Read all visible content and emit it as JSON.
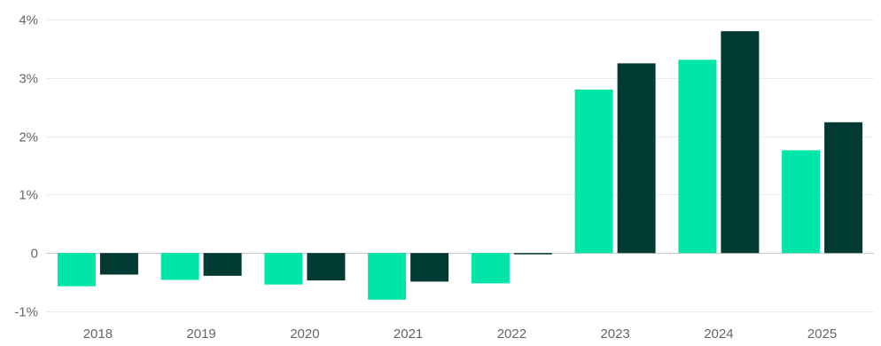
{
  "chart_data": {
    "type": "bar",
    "categories": [
      "2018",
      "2019",
      "2020",
      "2021",
      "2022",
      "2023",
      "2024",
      "2025"
    ],
    "series": [
      {
        "color": "#00e6a8",
        "values": [
          -0.57,
          -0.46,
          -0.54,
          -0.8,
          -0.52,
          2.8,
          3.31,
          1.76
        ]
      },
      {
        "color": "#003a32",
        "values": [
          -0.37,
          -0.39,
          -0.47,
          -0.49,
          -0.02,
          3.25,
          3.8,
          2.24
        ]
      }
    ],
    "y_ticks": [
      -1,
      0,
      1,
      2,
      3,
      4
    ],
    "y_tick_labels": [
      "-1%",
      "0",
      "1%",
      "2%",
      "3%",
      "4%"
    ],
    "ylim": [
      -1,
      4
    ],
    "grid": true,
    "title": "",
    "xlabel": "",
    "ylabel": ""
  }
}
